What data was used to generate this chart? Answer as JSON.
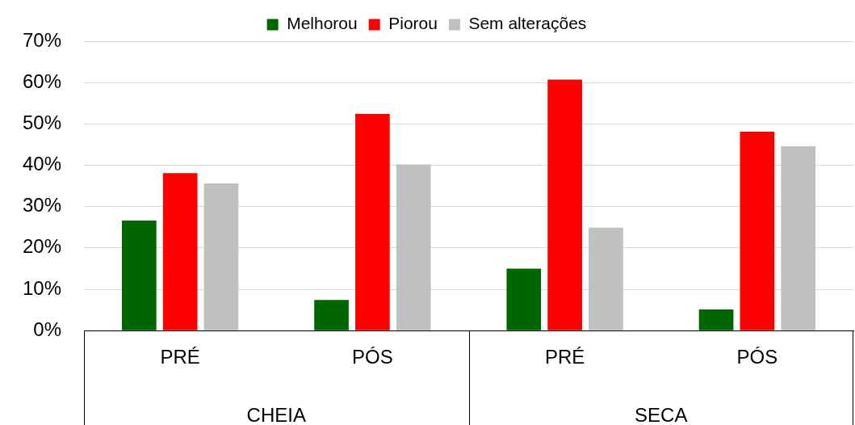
{
  "chart_data": {
    "type": "bar",
    "categories": [
      "PRÉ",
      "PÓS",
      "PRÉ",
      "PÓS"
    ],
    "series": [
      {
        "name": "Melhorou",
        "color": "#006600",
        "values": [
          26.6,
          7.4,
          15.0,
          5.1
        ]
      },
      {
        "name": "Piorou",
        "color": "#ff0000",
        "values": [
          38.1,
          52.4,
          60.7,
          48.1
        ]
      },
      {
        "name": "Sem alterações",
        "color": "#c0c0c0",
        "values": [
          35.6,
          40.2,
          24.9,
          44.6
        ]
      }
    ],
    "ylim": [
      0,
      70
    ],
    "yticks": [
      {
        "value": 0,
        "label": "0%"
      },
      {
        "value": 10,
        "label": "10%"
      },
      {
        "value": 20,
        "label": "20%"
      },
      {
        "value": 30,
        "label": "30%"
      },
      {
        "value": 40,
        "label": "40%"
      },
      {
        "value": 50,
        "label": "50%"
      },
      {
        "value": 60,
        "label": "60%"
      },
      {
        "value": 70,
        "label": "70%"
      }
    ],
    "annotations": [
      "CHEIA",
      "SECA"
    ],
    "grid": "y",
    "legend": "top"
  }
}
